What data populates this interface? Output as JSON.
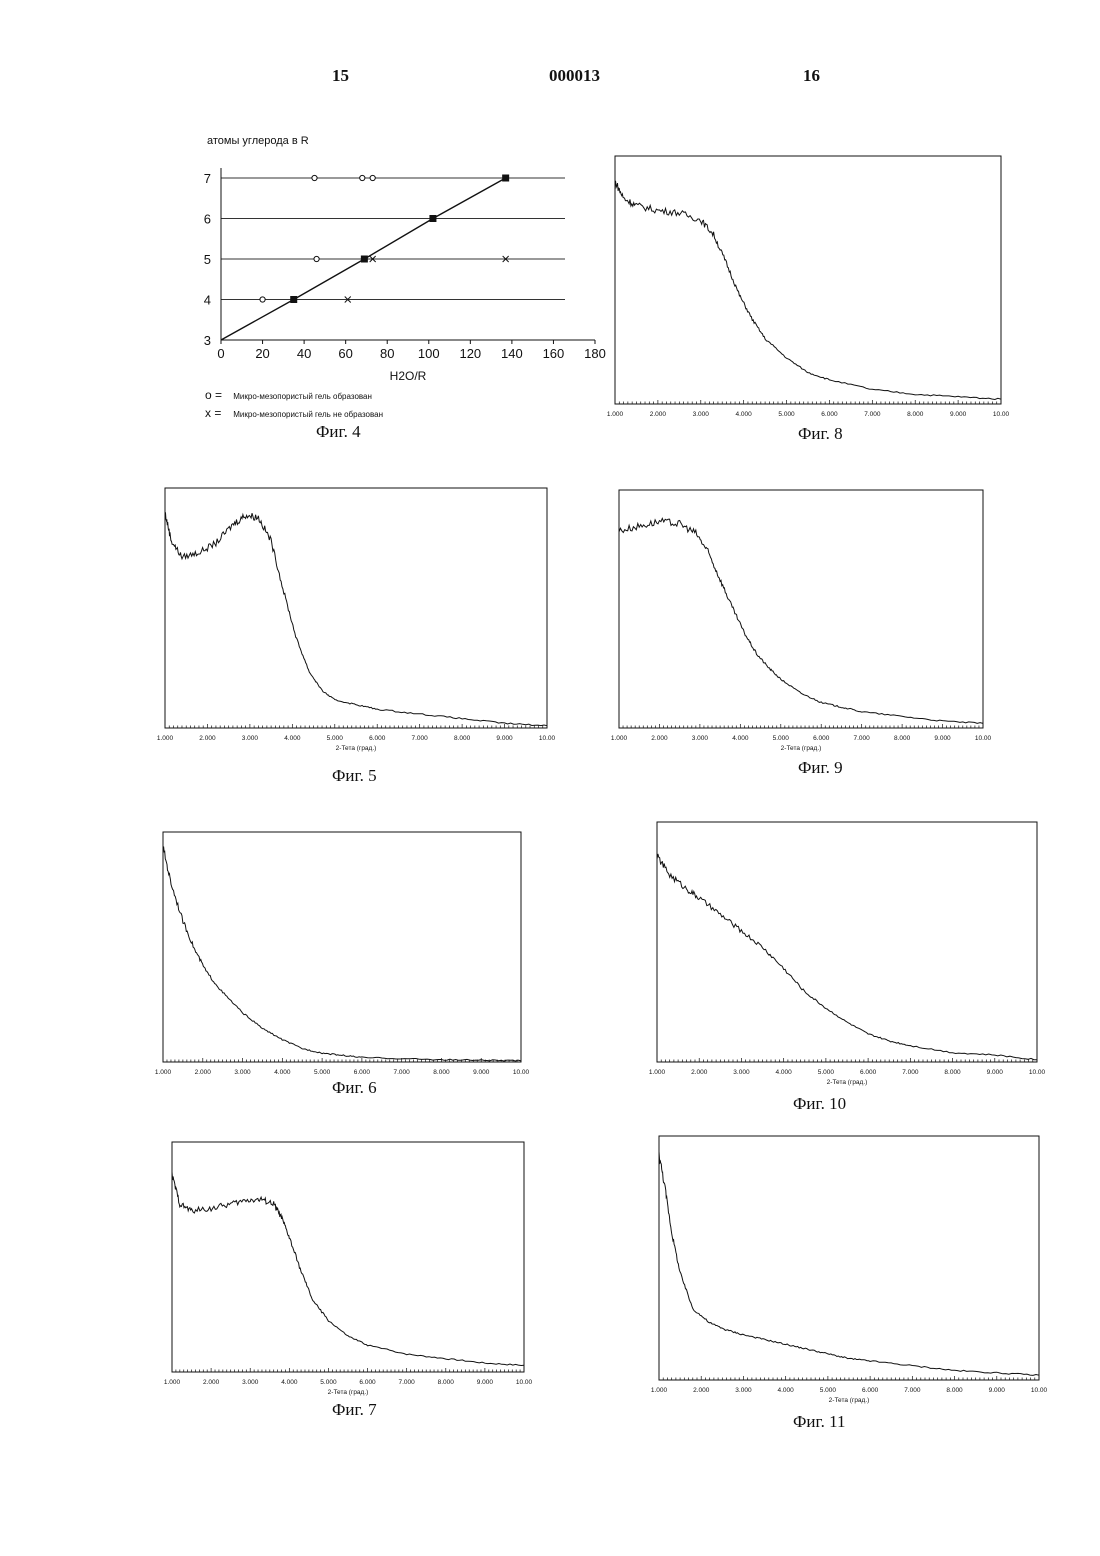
{
  "header": {
    "page_left": "15",
    "doc_number": "000013",
    "page_right": "16"
  },
  "legend": [
    {
      "symbol": "o =",
      "text": "Микро-мезопористый гель образован"
    },
    {
      "symbol": "x =",
      "text": "Микро-мезопористый гель не образован"
    }
  ],
  "chart_data": [
    {
      "id": "fig4",
      "caption": "Фиг. 4",
      "type": "scatter",
      "ylabel": "атомы углерода в R",
      "xlabel": "H2O/R",
      "xlim": [
        0,
        180
      ],
      "ylim": [
        3,
        7
      ],
      "x_ticks": [
        "0",
        "20",
        "40",
        "60",
        "80",
        "100",
        "120",
        "140",
        "160",
        "180"
      ],
      "y_ticks": [
        "3",
        "4",
        "5",
        "6",
        "7"
      ],
      "grid": "horizontal",
      "series": [
        {
          "marker": "circle",
          "points": [
            [
              45,
              7
            ],
            [
              68,
              7
            ],
            [
              73,
              7
            ],
            [
              46,
              5
            ],
            [
              20,
              4
            ]
          ]
        },
        {
          "marker": "cross",
          "points": [
            [
              73,
              5
            ],
            [
              137,
              5
            ],
            [
              61,
              4
            ]
          ]
        },
        {
          "marker": "square",
          "line": true,
          "points": [
            [
              0,
              3
            ],
            [
              35,
              4
            ],
            [
              69,
              5
            ],
            [
              102,
              6
            ],
            [
              137,
              7
            ]
          ]
        }
      ]
    },
    {
      "id": "fig8",
      "caption": "Фиг. 8",
      "type": "line",
      "xlabel": "",
      "x_ticks": [
        "1.000",
        "2.000",
        "3.000",
        "4.000",
        "5.000",
        "6.000",
        "7.000",
        "8.000",
        "9.000",
        "10.00"
      ],
      "xlim": [
        1,
        10
      ],
      "ylim": [
        0,
        100
      ],
      "x": [
        1.0,
        1.2,
        1.5,
        2.0,
        2.5,
        3.0,
        3.3,
        3.6,
        3.9,
        4.2,
        4.5,
        5.0,
        5.5,
        6.0,
        7.0,
        8.0,
        9.0,
        10.0
      ],
      "y": [
        92,
        85,
        82,
        80,
        79,
        76,
        70,
        58,
        45,
        35,
        27,
        19,
        13,
        10,
        6,
        4,
        3,
        2
      ]
    },
    {
      "id": "fig5",
      "caption": "Фиг. 5",
      "type": "line",
      "xlabel": "2-Тета (град.)",
      "x_ticks": [
        "1.000",
        "2.000",
        "3.000",
        "4.000",
        "5.000",
        "6.000",
        "7.000",
        "8.000",
        "9.000",
        "10.00"
      ],
      "xlim": [
        1,
        10
      ],
      "ylim": [
        0,
        100
      ],
      "x": [
        1.0,
        1.15,
        1.4,
        1.8,
        2.2,
        2.6,
        2.9,
        3.2,
        3.5,
        3.8,
        4.1,
        4.4,
        4.7,
        5.0,
        5.5,
        6.0,
        7.0,
        8.0,
        9.0,
        10.0
      ],
      "y": [
        92,
        80,
        73,
        75,
        79,
        87,
        91,
        90,
        80,
        58,
        38,
        24,
        16,
        12,
        10,
        8,
        6,
        4,
        2,
        1
      ]
    },
    {
      "id": "fig9",
      "caption": "Фиг. 9",
      "type": "line",
      "xlabel": "2-Тета (град.)",
      "x_ticks": [
        "1.000",
        "2.000",
        "3.000",
        "4.000",
        "5.000",
        "6.000",
        "7.000",
        "8.000",
        "9.000",
        "10.00"
      ],
      "xlim": [
        1,
        10
      ],
      "ylim": [
        0,
        100
      ],
      "x": [
        1.0,
        1.5,
        2.0,
        2.5,
        2.9,
        3.2,
        3.5,
        3.8,
        4.1,
        4.4,
        4.7,
        5.0,
        5.5,
        6.0,
        6.5,
        7.0,
        8.0,
        9.0,
        10.0
      ],
      "y": [
        85,
        87,
        89,
        88,
        84,
        76,
        64,
        52,
        41,
        32,
        26,
        21,
        15,
        11,
        9,
        7,
        5,
        3,
        2
      ]
    },
    {
      "id": "fig6",
      "caption": "Фиг. 6",
      "type": "line",
      "xlabel": "",
      "x_ticks": [
        "1.000",
        "2.000",
        "3.000",
        "4.000",
        "5.000",
        "6.000",
        "7.000",
        "8.000",
        "9.000",
        "10.00"
      ],
      "xlim": [
        1,
        10
      ],
      "ylim": [
        0,
        100
      ],
      "x": [
        1.0,
        1.2,
        1.5,
        1.8,
        2.1,
        2.5,
        3.0,
        3.5,
        4.0,
        4.5,
        5.0,
        5.5,
        6.0,
        7.0,
        8.0,
        9.0,
        10.0
      ],
      "y": [
        96,
        80,
        63,
        50,
        40,
        31,
        22,
        15,
        10,
        6,
        4,
        3,
        2,
        1.5,
        1,
        0.8,
        0.5
      ]
    },
    {
      "id": "fig10",
      "caption": "Фиг. 10",
      "type": "line",
      "xlabel": "2-Тета (град.)",
      "x_ticks": [
        "1.000",
        "2.000",
        "3.000",
        "4.000",
        "5.000",
        "6.000",
        "7.000",
        "8.000",
        "9.000",
        "10.00"
      ],
      "xlim": [
        1,
        10
      ],
      "ylim": [
        0,
        100
      ],
      "x": [
        1.0,
        1.3,
        1.7,
        2.0,
        2.5,
        3.0,
        3.5,
        4.0,
        4.5,
        5.0,
        5.5,
        6.0,
        6.5,
        7.0,
        8.0,
        9.0,
        10.0
      ],
      "y": [
        88,
        80,
        74,
        70,
        63,
        56,
        49,
        40,
        30,
        23,
        17,
        12,
        9,
        7,
        4,
        3,
        1
      ]
    },
    {
      "id": "fig7",
      "caption": "Фиг. 7",
      "type": "line",
      "xlabel": "2-Тета (град.)",
      "x_ticks": [
        "1.000",
        "2.000",
        "3.000",
        "4.000",
        "5.000",
        "6.000",
        "7.000",
        "8.000",
        "9.000",
        "10.00"
      ],
      "xlim": [
        1,
        10
      ],
      "ylim": [
        0,
        100
      ],
      "x": [
        1.0,
        1.2,
        1.5,
        2.0,
        2.5,
        3.0,
        3.3,
        3.6,
        3.8,
        4.0,
        4.3,
        4.6,
        5.0,
        5.5,
        6.0,
        7.0,
        8.0,
        9.0,
        10.0
      ],
      "y": [
        88,
        75,
        72,
        73,
        75,
        77,
        77,
        75,
        69,
        60,
        45,
        32,
        23,
        16,
        12,
        8,
        6,
        4,
        3
      ]
    },
    {
      "id": "fig11",
      "caption": "Фиг. 11",
      "type": "line",
      "xlabel": "2-Тета (град.)",
      "x_ticks": [
        "1.000",
        "2.000",
        "3.000",
        "4.000",
        "5.000",
        "6.000",
        "7.000",
        "8.000",
        "9.000",
        "10.00"
      ],
      "xlim": [
        1,
        10
      ],
      "ylim": [
        0,
        100
      ],
      "x": [
        1.0,
        1.15,
        1.3,
        1.5,
        1.8,
        2.2,
        2.6,
        3.0,
        3.5,
        4.0,
        4.5,
        5.0,
        5.5,
        6.0,
        7.0,
        8.0,
        9.0,
        10.0
      ],
      "y": [
        95,
        80,
        62,
        45,
        30,
        24,
        21,
        19,
        17,
        15,
        13,
        11,
        9,
        8,
        6,
        4,
        3,
        2
      ]
    }
  ]
}
